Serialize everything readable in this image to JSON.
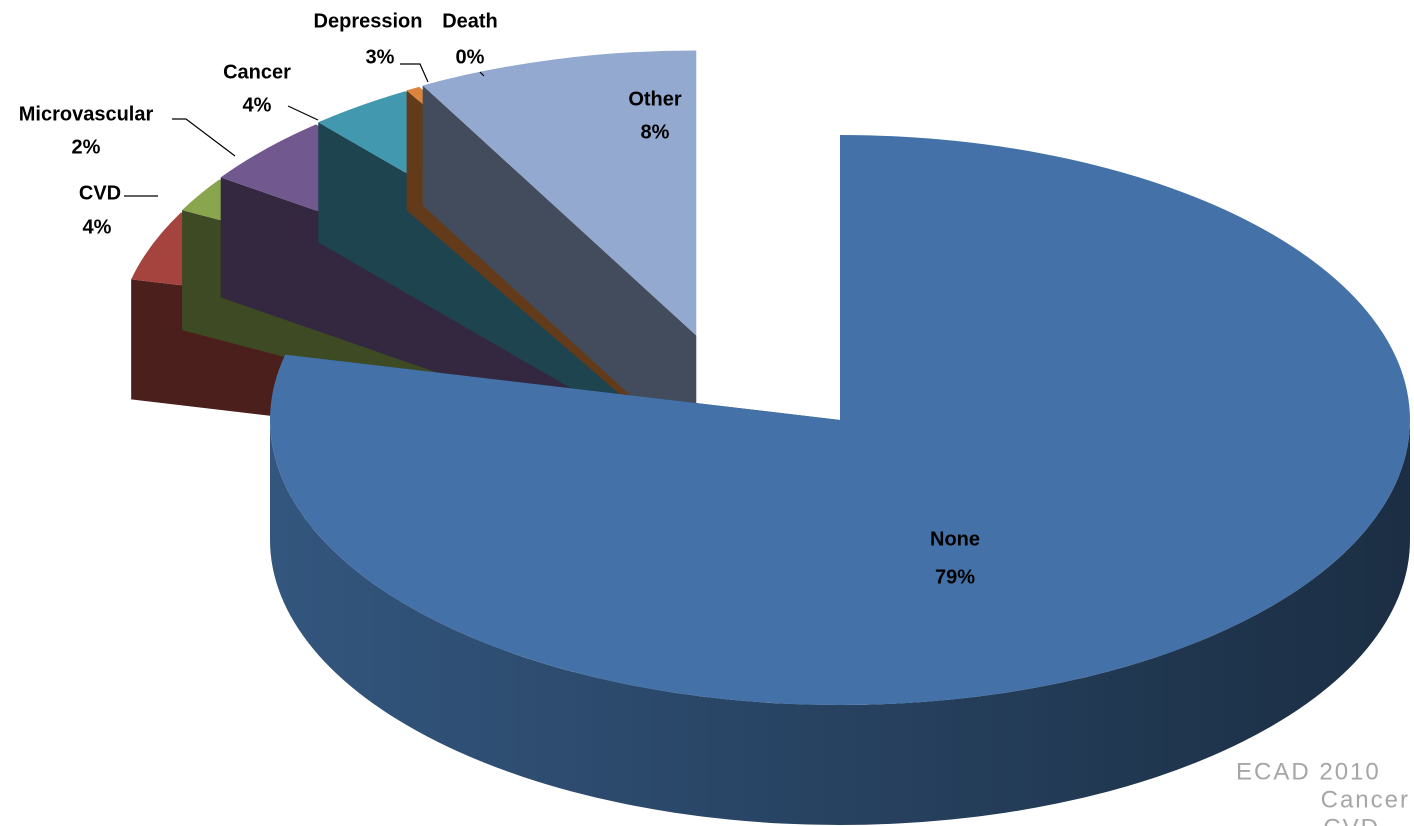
{
  "chart_data": {
    "type": "pie",
    "categories": [
      "None",
      "CVD",
      "Microvascular",
      "Cancer",
      "Depression",
      "Death",
      "Other"
    ],
    "values": [
      79,
      4,
      2,
      4,
      3,
      0.4,
      8
    ],
    "value_labels": [
      "79%",
      "4%",
      "2%",
      "4%",
      "3%",
      "0%",
      "8%"
    ],
    "colors": [
      "#4472a8",
      "#a5443f",
      "#89a54e",
      "#71588f",
      "#4198af",
      "#db843d",
      "#93a9cf"
    ],
    "notes": [
      "ECAD 2010",
      "Cancer",
      "CVD"
    ]
  }
}
